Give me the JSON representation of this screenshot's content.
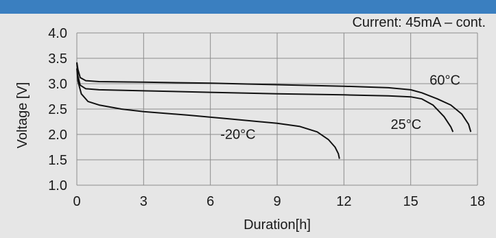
{
  "chart_data": {
    "type": "line",
    "title": "",
    "annotation": "Current: 45mA – cont.",
    "xlabel": "Duration[h]",
    "ylabel": "Voltage [V]",
    "xlim": [
      0,
      18
    ],
    "ylim": [
      1.0,
      4.0
    ],
    "x_ticks": [
      0,
      3,
      6,
      9,
      12,
      15,
      18
    ],
    "y_ticks": [
      1.0,
      1.5,
      2.0,
      2.5,
      3.0,
      3.5,
      4.0
    ],
    "x_tick_labels": [
      "0",
      "3",
      "6",
      "9",
      "12",
      "15",
      "18"
    ],
    "y_tick_labels": [
      "1.0",
      "1.5",
      "2.0",
      "2.5",
      "3.0",
      "3.5",
      "4.0"
    ],
    "grid": true,
    "line_color": "#111111",
    "series": [
      {
        "name": "60°C",
        "points": [
          [
            0.0,
            3.42
          ],
          [
            0.05,
            3.28
          ],
          [
            0.15,
            3.12
          ],
          [
            0.4,
            3.06
          ],
          [
            1.0,
            3.04
          ],
          [
            3,
            3.03
          ],
          [
            6,
            3.01
          ],
          [
            9,
            2.98
          ],
          [
            12,
            2.95
          ],
          [
            14,
            2.92
          ],
          [
            15,
            2.88
          ],
          [
            15.5,
            2.82
          ],
          [
            16.2,
            2.7
          ],
          [
            16.8,
            2.58
          ],
          [
            17.3,
            2.4
          ],
          [
            17.6,
            2.2
          ],
          [
            17.7,
            2.05
          ]
        ]
      },
      {
        "name": "25°C",
        "points": [
          [
            0.0,
            3.4
          ],
          [
            0.05,
            3.15
          ],
          [
            0.15,
            2.97
          ],
          [
            0.4,
            2.9
          ],
          [
            1.0,
            2.88
          ],
          [
            3,
            2.86
          ],
          [
            6,
            2.83
          ],
          [
            9,
            2.8
          ],
          [
            12,
            2.78
          ],
          [
            14,
            2.76
          ],
          [
            15,
            2.74
          ],
          [
            15.5,
            2.7
          ],
          [
            16.0,
            2.58
          ],
          [
            16.5,
            2.35
          ],
          [
            16.8,
            2.15
          ],
          [
            16.9,
            2.05
          ]
        ]
      },
      {
        "name": "-20°C",
        "points": [
          [
            0.0,
            3.3
          ],
          [
            0.05,
            3.05
          ],
          [
            0.2,
            2.8
          ],
          [
            0.5,
            2.65
          ],
          [
            1.0,
            2.58
          ],
          [
            2,
            2.5
          ],
          [
            3,
            2.45
          ],
          [
            5,
            2.38
          ],
          [
            7,
            2.3
          ],
          [
            9,
            2.22
          ],
          [
            10,
            2.16
          ],
          [
            10.8,
            2.05
          ],
          [
            11.3,
            1.9
          ],
          [
            11.6,
            1.75
          ],
          [
            11.75,
            1.62
          ],
          [
            11.8,
            1.52
          ]
        ]
      }
    ],
    "series_labels": [
      {
        "text": "60°C",
        "x": 15.85,
        "y": 2.98
      },
      {
        "text": "25°C",
        "x": 14.1,
        "y": 2.11
      },
      {
        "text": "-20°C",
        "x": 6.45,
        "y": 1.91
      }
    ]
  }
}
